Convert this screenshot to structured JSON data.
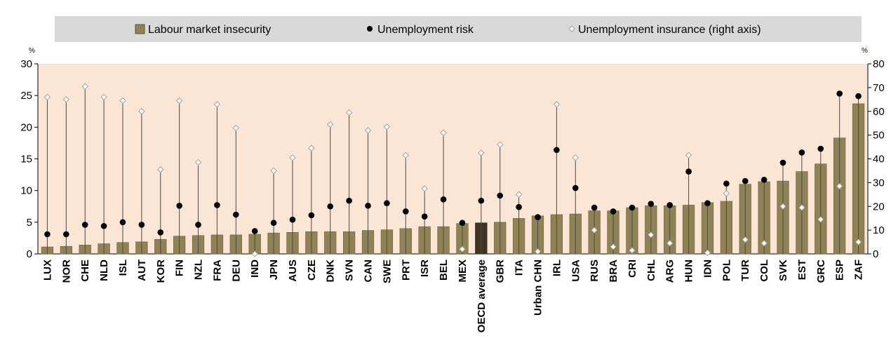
{
  "chart_data": {
    "type": "bar",
    "categories": [
      "LUX",
      "NOR",
      "CHE",
      "NLD",
      "ISL",
      "AUT",
      "KOR",
      "FIN",
      "NZL",
      "FRA",
      "DEU",
      "IND",
      "JPN",
      "AUS",
      "CZE",
      "DNK",
      "SVN",
      "CAN",
      "SWE",
      "PRT",
      "ISR",
      "BEL",
      "MEX",
      "OECD average",
      "GBR",
      "ITA",
      "Urban CHN",
      "IRL",
      "USA",
      "RUS",
      "BRA",
      "CRI",
      "CHL",
      "ARG",
      "HUN",
      "IDN",
      "POL",
      "TUR",
      "COL",
      "SVK",
      "EST",
      "GRC",
      "ESP",
      "ZAF"
    ],
    "highlight_category": "OECD average",
    "series": [
      {
        "name": "Labour market insecurity",
        "axis": "left",
        "values": [
          1.1,
          1.2,
          1.4,
          1.6,
          1.8,
          1.9,
          2.3,
          2.8,
          2.9,
          3.0,
          3.0,
          3.1,
          3.3,
          3.4,
          3.5,
          3.5,
          3.5,
          3.7,
          3.8,
          4.0,
          4.3,
          4.3,
          4.8,
          4.9,
          5.0,
          5.6,
          6.0,
          6.2,
          6.3,
          6.8,
          6.8,
          7.3,
          7.6,
          7.6,
          7.7,
          8.1,
          8.3,
          11.0,
          11.4,
          11.5,
          13.0,
          14.2,
          18.3,
          23.7
        ]
      },
      {
        "name": "Unemployment risk",
        "axis": "left",
        "values": [
          3.1,
          3.1,
          4.6,
          4.4,
          5.0,
          4.6,
          3.4,
          7.6,
          4.6,
          7.7,
          6.2,
          3.6,
          4.9,
          5.4,
          6.1,
          7.5,
          8.4,
          7.6,
          8.0,
          6.7,
          5.9,
          8.6,
          4.9,
          8.4,
          9.2,
          7.4,
          5.8,
          16.4,
          10.4,
          7.3,
          6.7,
          7.3,
          7.9,
          7.7,
          13.0,
          8.0,
          11.1,
          11.5,
          11.7,
          14.4,
          16.0,
          16.6,
          25.3,
          24.9
        ]
      },
      {
        "name": "Unemployment insurance (right axis)",
        "axis": "right",
        "values": [
          66,
          65,
          70.5,
          66,
          64.5,
          60,
          35.5,
          64.5,
          38.5,
          63,
          53,
          0,
          35,
          40.5,
          44.5,
          54.5,
          59.5,
          52,
          53.5,
          41.5,
          27.5,
          51,
          2,
          42.5,
          46,
          25,
          1,
          63,
          40.5,
          10,
          3,
          1.5,
          8,
          4.5,
          41.5,
          0.5,
          25.5,
          6,
          4.5,
          20,
          19.5,
          14.5,
          28.5,
          5
        ]
      }
    ],
    "legend": [
      "Labour market insecurity",
      "Unemployment risk",
      "Unemployment insurance (right axis)"
    ],
    "legend_position": "top",
    "y_left": {
      "unit_label": "%",
      "ylim": [
        0,
        30
      ],
      "ticks": [
        "0",
        "5",
        "10",
        "15",
        "20",
        "25",
        "30"
      ]
    },
    "y_right": {
      "unit_label": "%",
      "ylim": [
        0,
        80
      ],
      "ticks": [
        "0",
        "10",
        "20",
        "30",
        "40",
        "50",
        "60",
        "70",
        "80"
      ]
    },
    "colors": {
      "bar": "#8f8255",
      "bar_highlight": "#3e3625",
      "plot_bg": "#fbe6d6",
      "legend_bg": "#d9d9d9",
      "dot": "#000000",
      "diamond": "#a0a0a0",
      "line": "#4a4a4a"
    }
  }
}
